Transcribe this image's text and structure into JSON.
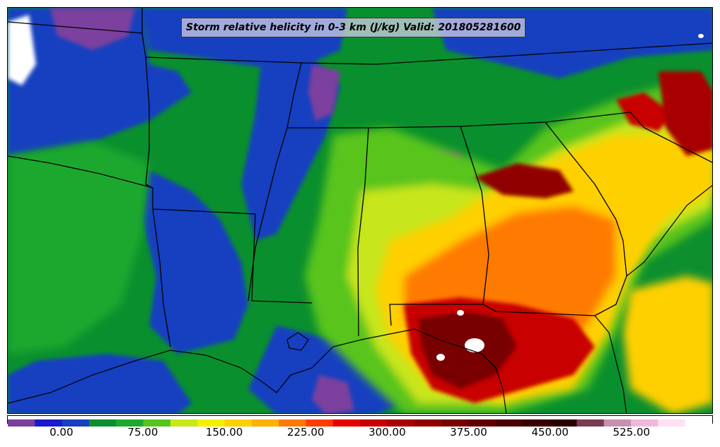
{
  "map": {
    "title": "Storm relative helicity in 0-3 km (J/kg) Valid: 201805281600",
    "region": "Southeastern United States and northern Gulf of Mexico",
    "variable": "Storm relative helicity in 0-3 km",
    "units": "J/kg",
    "valid_time": "201805281600"
  },
  "colorbar": {
    "colors": [
      "#7b3f9e",
      "#1a1acc",
      "#1540c0",
      "#0a8f2e",
      "#1ea82e",
      "#58c41e",
      "#c8e61a",
      "#f5f000",
      "#ffd000",
      "#ffb000",
      "#ff7a00",
      "#ff3c00",
      "#e60000",
      "#c80000",
      "#a80000",
      "#900000",
      "#780000",
      "#600000",
      "#4a0000",
      "#3a0000",
      "#2c0000",
      "#7a3a50",
      "#c890b0",
      "#f0b8dc",
      "#ffe0f4",
      "#ffffff"
    ],
    "tick_labels": [
      "0.00",
      "75.00",
      "150.00",
      "225.00",
      "300.00",
      "375.00",
      "450.00",
      "525.00"
    ],
    "tick_values": [
      0,
      75,
      150,
      225,
      300,
      375,
      450,
      525
    ],
    "range": [
      -50,
      600
    ]
  },
  "legend": {
    "low_color": "#1a1acc",
    "mid_color": "#0a8f2e",
    "high_color": "#780000",
    "peak_color": "#ffffff"
  }
}
